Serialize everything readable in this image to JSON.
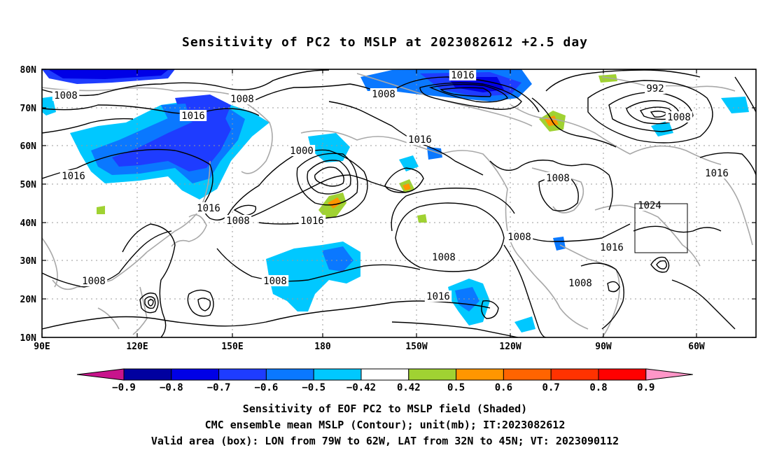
{
  "title": "Sensitivity of PC2 to MSLP at 2023082612 +2.5 day",
  "map": {
    "lat_labels": [
      "80N",
      "70N",
      "60N",
      "50N",
      "40N",
      "30N",
      "20N",
      "10N"
    ],
    "lon_labels": [
      "90E",
      "120E",
      "150E",
      "180",
      "150W",
      "120W",
      "90W",
      "60W"
    ],
    "gridlines": true,
    "valid_box": {
      "lon_from": "79W",
      "lon_to": "62W",
      "lat_from": "32N",
      "lat_to": "45N"
    },
    "contour_labels": [
      "1008",
      "1008",
      "1016",
      "1008",
      "1016",
      "1016",
      "1000",
      "992",
      "1008",
      "1016",
      "1008",
      "1016",
      "1016",
      "1008",
      "1016",
      "1024",
      "1008",
      "1008",
      "1016",
      "1008",
      "1016",
      "1008",
      "1008"
    ]
  },
  "colorbar": {
    "labels": [
      "-0.9",
      "-0.8",
      "-0.7",
      "-0.6",
      "-0.5",
      "-0.42",
      "0.42",
      "0.5",
      "0.6",
      "0.7",
      "0.8",
      "0.9"
    ],
    "colors": [
      "#0000a0",
      "#0000e6",
      "#1e3cff",
      "#0a78ff",
      "#00c8ff",
      "#ffffff",
      "#a0d232",
      "#ff9600",
      "#ff6400",
      "#ff3200",
      "#ff0000"
    ],
    "under_color": "#c8148c",
    "over_color": "#ff96c8"
  },
  "captions": {
    "line1": "Sensitivity of EOF PC2 to MSLP field (Shaded)",
    "line2": "CMC ensemble mean MSLP (Contour); unit(mb); IT:2023082612",
    "line3": "Valid area (box): LON from 79W to 62W, LAT from 32N to 45N; VT: 2023090112"
  }
}
